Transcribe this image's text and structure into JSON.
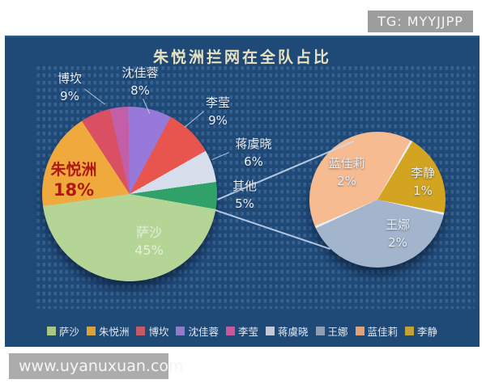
{
  "page": {
    "tg_badge": "TG: MYYJJPP",
    "site_watermark": "www.uyanuxuan.com"
  },
  "chart_data": {
    "type": "pie",
    "subtype": "pie-of-pie",
    "title": "朱悦洲拦网在全队占比",
    "unit": "%",
    "background_color": "#1f4a78",
    "main_pie": {
      "start_angle_deg": 100,
      "slices": [
        {
          "label": "萨沙",
          "value": 45,
          "pct": "45%",
          "color": "#b5d596"
        },
        {
          "label": "朱悦洲",
          "value": 18,
          "pct": "18%",
          "color": "#f0a93c"
        },
        {
          "label": "博坎",
          "value": 9,
          "pct": "9%",
          "color": "#d95062",
          "color2": "#c35fa8"
        },
        {
          "label": "沈佳蓉",
          "value": 8,
          "pct": "8%",
          "color": "#9679d8"
        },
        {
          "label": "李莹",
          "value": 9,
          "pct": "9%",
          "color": "#e8544e"
        },
        {
          "label": "蒋虞晓",
          "value": 6,
          "pct": "6%",
          "color": "#d6deec"
        },
        {
          "label": "其他",
          "value": 5,
          "pct": "5%",
          "color": "#2fa169"
        }
      ]
    },
    "secondary_pie": {
      "start_angle_deg": 30,
      "separator_color": "#e9eef3",
      "slices": [
        {
          "label": "李静",
          "value": 1,
          "pct": "1%",
          "color": "#d2a41f"
        },
        {
          "label": "王娜",
          "value": 2,
          "pct": "2%",
          "color": "#a3b5cc"
        },
        {
          "label": "蓝佳莉",
          "value": 2,
          "pct": "2%",
          "color": "#f6bb90"
        }
      ]
    },
    "legend": [
      {
        "label": "萨沙",
        "color": "#a6c885"
      },
      {
        "label": "朱悦洲",
        "color": "#d9a33c"
      },
      {
        "label": "博坎",
        "color": "#c25b66"
      },
      {
        "label": "沈佳蓉",
        "color": "#8f7bc8"
      },
      {
        "label": "李莹",
        "color": "#c9589a"
      },
      {
        "label": "蒋虞晓",
        "color": "#bfcbdd"
      },
      {
        "label": "王娜",
        "color": "#8d9fb5"
      },
      {
        "label": "蓝佳莉",
        "color": "#dfa27a"
      },
      {
        "label": "李静",
        "color": "#c2a13a"
      }
    ],
    "highlighted_slice": "朱悦洲"
  }
}
